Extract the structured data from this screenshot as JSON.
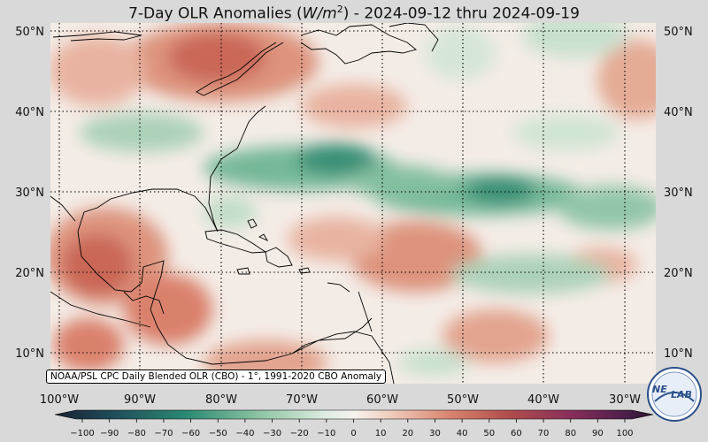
{
  "title": {
    "prefix": "7-Day OLR Anomalies (",
    "unit_main": "W/m",
    "unit_exp": "2",
    "suffix": ") - 2024-09-12 thru 2024-09-19"
  },
  "map": {
    "lat_labels": [
      "50°N",
      "40°N",
      "30°N",
      "20°N",
      "10°N"
    ],
    "lat_values": [
      50,
      40,
      30,
      20,
      10
    ],
    "lon_labels": [
      "100°W",
      "90°W",
      "80°W",
      "70°W",
      "60°W",
      "50°W",
      "40°W",
      "30°W"
    ],
    "lon_values": [
      -100,
      -90,
      -80,
      -70,
      -60,
      -50,
      -40,
      -30
    ],
    "lat_range": [
      6.5,
      51.5
    ],
    "lon_range": [
      -101,
      -27
    ],
    "grid": "dotted"
  },
  "colorbar": {
    "ticks": [
      "−100",
      "−90",
      "−80",
      "−70",
      "−60",
      "−50",
      "−40",
      "−30",
      "−20",
      "−10",
      "0",
      "10",
      "20",
      "30",
      "40",
      "50",
      "60",
      "70",
      "80",
      "90",
      "100"
    ],
    "range": [
      -100,
      100
    ]
  },
  "source_label": "NOAA/PSL CPC Daily Blended OLR (CBO) - 1°, 1991-2020 CBO Anomaly",
  "logo": {
    "text_a": "NE",
    "text_b": "LAB",
    "icon": "noaa-lab-logo"
  },
  "colors": {
    "negative_strong": "#1f6f5c",
    "negative_mid": "#5fae8b",
    "negative_light": "#bfdcc8",
    "neutral": "#f6f2ee",
    "positive_light": "#f0c7b6",
    "positive_mid": "#dc8f78",
    "positive_strong": "#c2584a"
  }
}
